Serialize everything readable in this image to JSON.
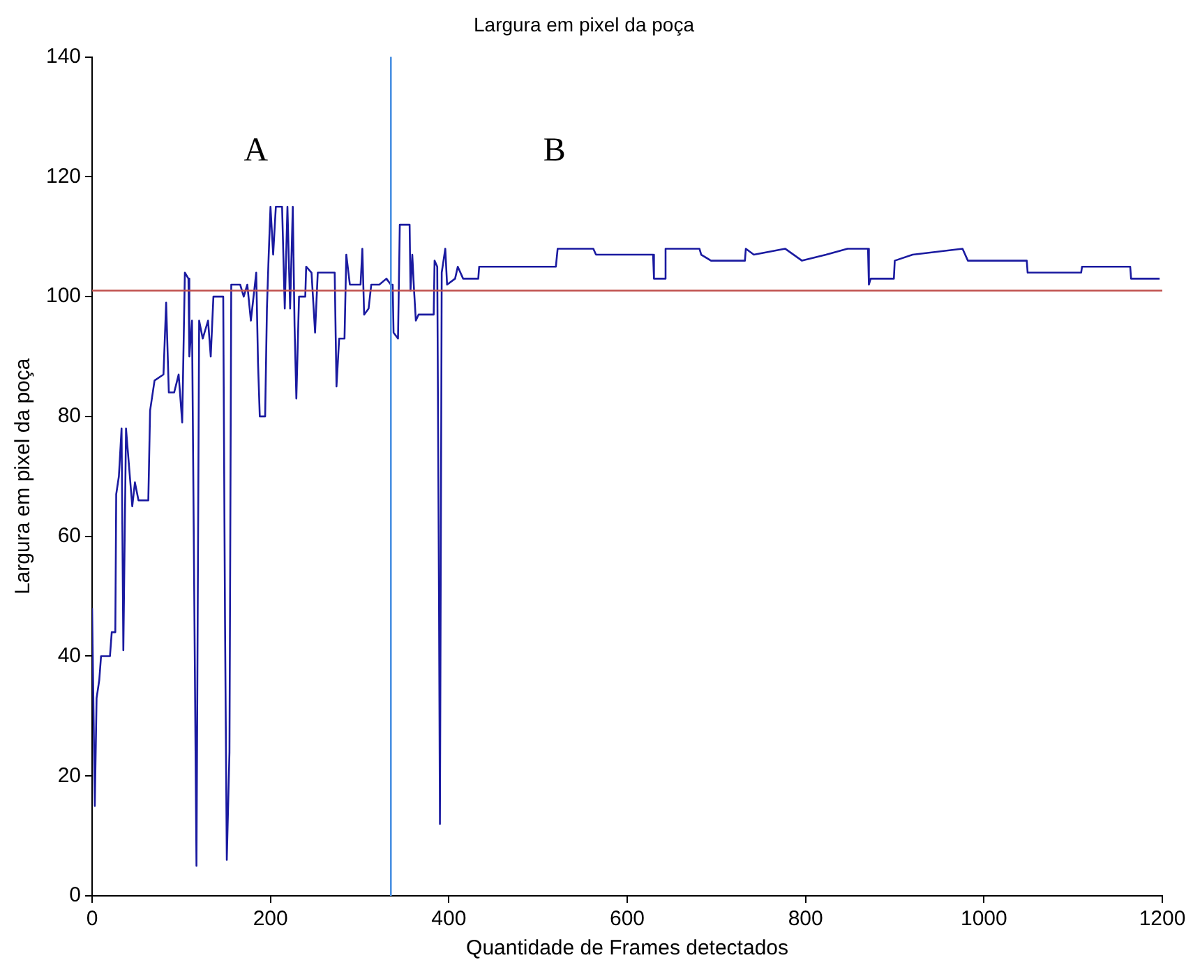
{
  "chart_data": {
    "type": "line",
    "title": "Largura em pixel da poça",
    "xlabel": "Quantidade de Frames detectados",
    "ylabel": "Largura em pixel da poça",
    "xlim": [
      0,
      1200
    ],
    "xticks": [
      0,
      200,
      400,
      600,
      800,
      1000,
      1200
    ],
    "ylim": [
      0,
      140
    ],
    "yticks": [
      0,
      20,
      40,
      60,
      80,
      100,
      120,
      140
    ],
    "grid": false,
    "legend": false,
    "marker": "none",
    "line_style": "solid",
    "series": [
      {
        "color": "#1a1aa0",
        "x": [
          0,
          3,
          5,
          8,
          10,
          20,
          22,
          26,
          27,
          30,
          33,
          35,
          38,
          45,
          48,
          52,
          63,
          65,
          70,
          80,
          83,
          86,
          92,
          97,
          101,
          104,
          108,
          109,
          112,
          117,
          120,
          124,
          130,
          133,
          136,
          147,
          149,
          151,
          154,
          156,
          166,
          170,
          174,
          178,
          184,
          186,
          188,
          194,
          196,
          198,
          200,
          203,
          206,
          213,
          216,
          219,
          222,
          225,
          227,
          229,
          232,
          239,
          240,
          246,
          250,
          253,
          259,
          272,
          274,
          277,
          283,
          285,
          289,
          301,
          303,
          305,
          310,
          313,
          322,
          330,
          335,
          337,
          338,
          343,
          345,
          356,
          357,
          359,
          361,
          363,
          366,
          383,
          384,
          387,
          389,
          390,
          392,
          396,
          398,
          407,
          410,
          416,
          433,
          434,
          520,
          522,
          562,
          565,
          584,
          629,
          630,
          642,
          643,
          681,
          683,
          694,
          732,
          733,
          742,
          777,
          796,
          823,
          847,
          870,
          871,
          873,
          899,
          900,
          920,
          976,
          982,
          1048,
          1049,
          1109,
          1110,
          1164,
          1165,
          1197
        ],
        "values": [
          48,
          15,
          33,
          36,
          40,
          40,
          44,
          44,
          67,
          70,
          78,
          41,
          78,
          65,
          69,
          66,
          66,
          81,
          86,
          87,
          99,
          84,
          84,
          87,
          79,
          104,
          103,
          90,
          96,
          5,
          96,
          93,
          96,
          90,
          100,
          100,
          46,
          6,
          24,
          102,
          102,
          100,
          102,
          96,
          104,
          89,
          80,
          80,
          98,
          107,
          115,
          107,
          115,
          115,
          98,
          115,
          98,
          115,
          95,
          83,
          100,
          100,
          105,
          104,
          94,
          104,
          104,
          104,
          85,
          93,
          93,
          107,
          102,
          102,
          108,
          97,
          98,
          102,
          102,
          103,
          102,
          102,
          94,
          93,
          112,
          112,
          101,
          107,
          101,
          96,
          97,
          97,
          106,
          105,
          48,
          12,
          104,
          108,
          102,
          103,
          105,
          103,
          103,
          105,
          105,
          108,
          108,
          107,
          107,
          107,
          103,
          103,
          108,
          108,
          107,
          106,
          106,
          108,
          107,
          108,
          106,
          107,
          108,
          108,
          102,
          103,
          103,
          106,
          107,
          108,
          106,
          106,
          104,
          104,
          105,
          105,
          103,
          103
        ]
      }
    ],
    "ref_lines": [
      {
        "axis": "y",
        "value": 101,
        "color": "#c0504d",
        "line_style": "solid"
      },
      {
        "axis": "x",
        "value": 335,
        "color": "#4a90e2",
        "line_style": "solid"
      }
    ],
    "annotations": [
      "A",
      "B"
    ]
  }
}
